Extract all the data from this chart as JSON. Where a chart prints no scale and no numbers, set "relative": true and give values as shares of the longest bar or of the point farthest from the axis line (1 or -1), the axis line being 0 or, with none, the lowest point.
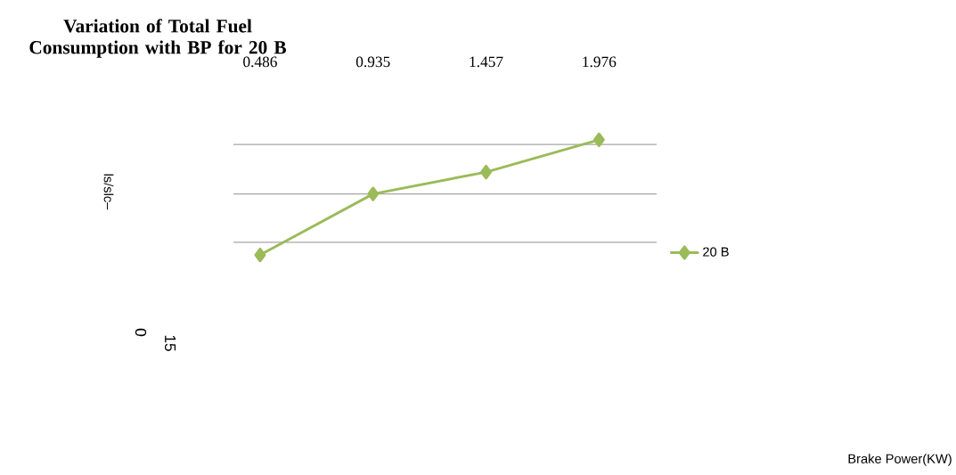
{
  "chart_data": {
    "type": "line",
    "title": "Variation of Total Fuel Consumption with BP for 20 B",
    "categories": [
      "0.486",
      "0.935",
      "1.457",
      "1.976"
    ],
    "series": [
      {
        "name": "20 B",
        "color": "#9bbb59",
        "values": [
          0,
          0.53,
          0.72,
          1
        ]
      }
    ],
    "relative": true,
    "grid": "y",
    "legend": "right",
    "marker": "diamond",
    "line_style": "solid",
    "annotations": [
      "ls/slc–",
      "0",
      "15",
      "Brake Power(KW)"
    ]
  }
}
